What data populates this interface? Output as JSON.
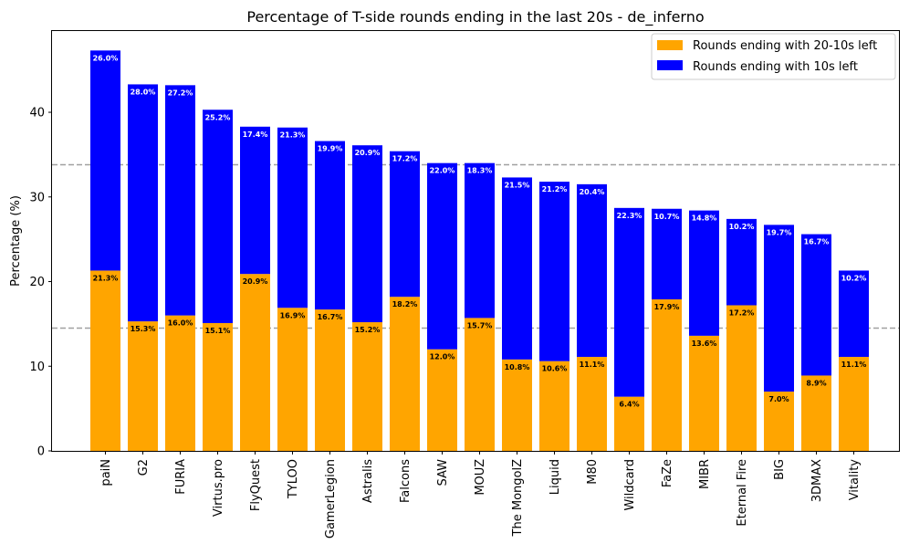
{
  "chart_data": {
    "type": "bar",
    "stacked": true,
    "title": "Percentage of T-side rounds ending in the last 20s - de_inferno",
    "xlabel": "",
    "ylabel": "Percentage (%)",
    "ylim": [
      0,
      49.6
    ],
    "yticks": [
      0,
      10,
      20,
      30,
      40
    ],
    "grid": false,
    "legend_position": "top-right",
    "categories": [
      "paiN",
      "G2",
      "FURIA",
      "Virtus.pro",
      "FlyQuest",
      "TYLOO",
      "GamerLegion",
      "Astralis",
      "Falcons",
      "SAW",
      "MOUZ",
      "The MongolZ",
      "Liquid",
      "M80",
      "Wildcard",
      "FaZe",
      "MIBR",
      "Eternal Fire",
      "BIG",
      "3DMAX",
      "Vitality"
    ],
    "series": [
      {
        "name": "Rounds ending with 20-10s left",
        "color": "#ffa500",
        "label_color": "#000000",
        "values": [
          21.3,
          15.3,
          16.0,
          15.1,
          20.9,
          16.9,
          16.7,
          15.2,
          18.2,
          12.0,
          15.7,
          10.8,
          10.6,
          11.1,
          6.4,
          17.9,
          13.6,
          17.2,
          7.0,
          8.9,
          11.1
        ],
        "labels": [
          "21.3%",
          "15.3%",
          "16.0%",
          "15.1%",
          "20.9%",
          "16.9%",
          "16.7%",
          "15.2%",
          "18.2%",
          "12.0%",
          "15.7%",
          "10.8%",
          "10.6%",
          "11.1%",
          "6.4%",
          "17.9%",
          "13.6%",
          "17.2%",
          "7.0%",
          "8.9%",
          "11.1%"
        ]
      },
      {
        "name": "Rounds ending with 10s left",
        "color": "#0000ff",
        "label_color": "#ffffff",
        "values": [
          26.0,
          28.0,
          27.2,
          25.2,
          17.4,
          21.3,
          19.9,
          20.9,
          17.2,
          22.0,
          18.3,
          21.5,
          21.2,
          20.4,
          22.3,
          10.7,
          14.8,
          10.2,
          19.7,
          16.7,
          10.2
        ],
        "labels": [
          "26.0%",
          "28.0%",
          "27.2%",
          "25.2%",
          "17.4%",
          "21.3%",
          "19.9%",
          "20.9%",
          "17.2%",
          "22.0%",
          "18.3%",
          "21.5%",
          "21.2%",
          "20.4%",
          "22.3%",
          "10.7%",
          "14.8%",
          "10.2%",
          "19.7%",
          "16.7%",
          "10.2%"
        ]
      }
    ],
    "reference_lines": [
      {
        "y": 33.8,
        "color": "#a0a0a0",
        "style": "dashed"
      },
      {
        "y": 14.5,
        "color": "#a0a0a0",
        "style": "dashed"
      }
    ]
  }
}
